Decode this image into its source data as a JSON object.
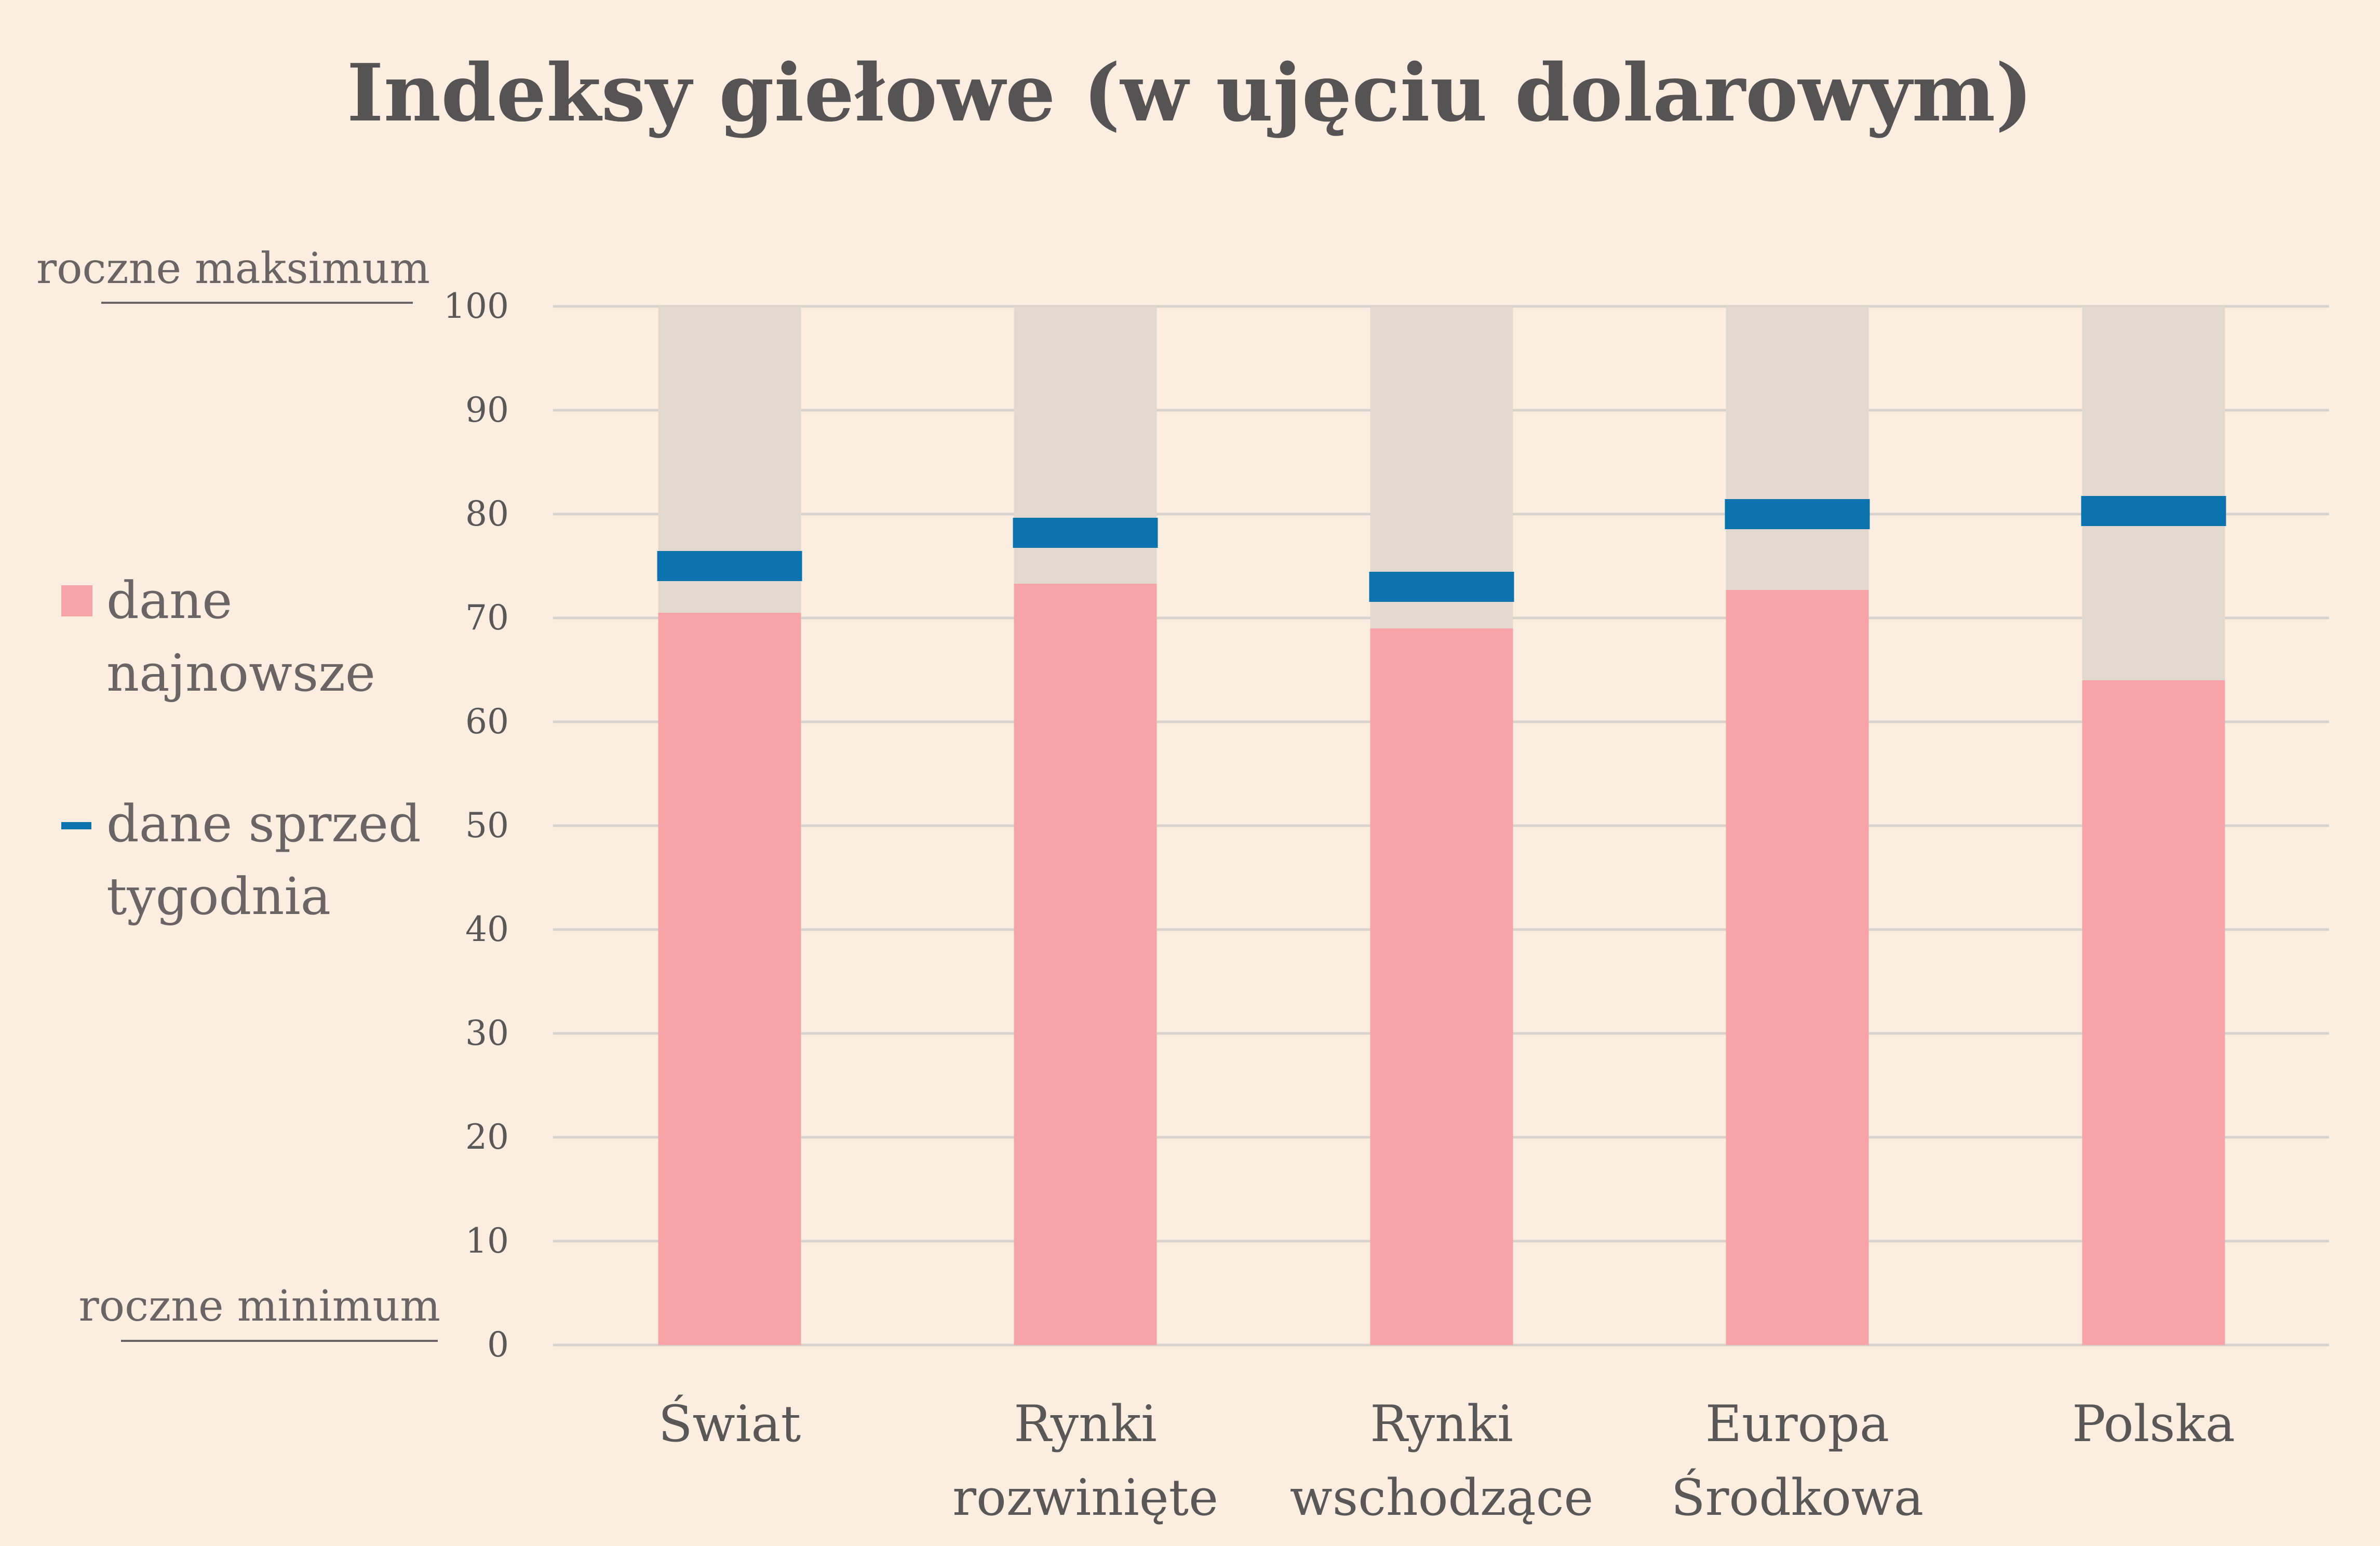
{
  "chart_data": {
    "type": "bar",
    "title": "Indeksy giełowe (w ujęciu dolarowym)",
    "annotations": {
      "top": "roczne maksimum",
      "bottom": "roczne minimum"
    },
    "ylim": [
      0,
      100
    ],
    "yticks": [
      "0",
      "10",
      "20",
      "30",
      "40",
      "50",
      "60",
      "70",
      "80",
      "90",
      "100"
    ],
    "grid": true,
    "legend_position": "left",
    "categories": [
      [
        "Świat"
      ],
      [
        "Rynki",
        "rozwinięte"
      ],
      [
        "Rynki",
        "wschodzące"
      ],
      [
        "Europa",
        "Środkowa"
      ],
      [
        "Polska"
      ]
    ],
    "series": [
      {
        "name": "dane najnowsze",
        "name_lines": [
          "dane",
          "najnowsze"
        ],
        "kind": "bar",
        "color": "#f7a4a9",
        "values": [
          70.5,
          73.3,
          69.0,
          72.7,
          64.0
        ]
      },
      {
        "name": "dane sprzed tygodnia",
        "name_lines": [
          "dane sprzed",
          "tygodnia"
        ],
        "kind": "marker",
        "color": "#0a73ad",
        "values": [
          75.0,
          78.2,
          73.0,
          80.0,
          80.3
        ]
      }
    ],
    "background_range_color": "#e3d8cd",
    "background_range": [
      0,
      100
    ]
  }
}
